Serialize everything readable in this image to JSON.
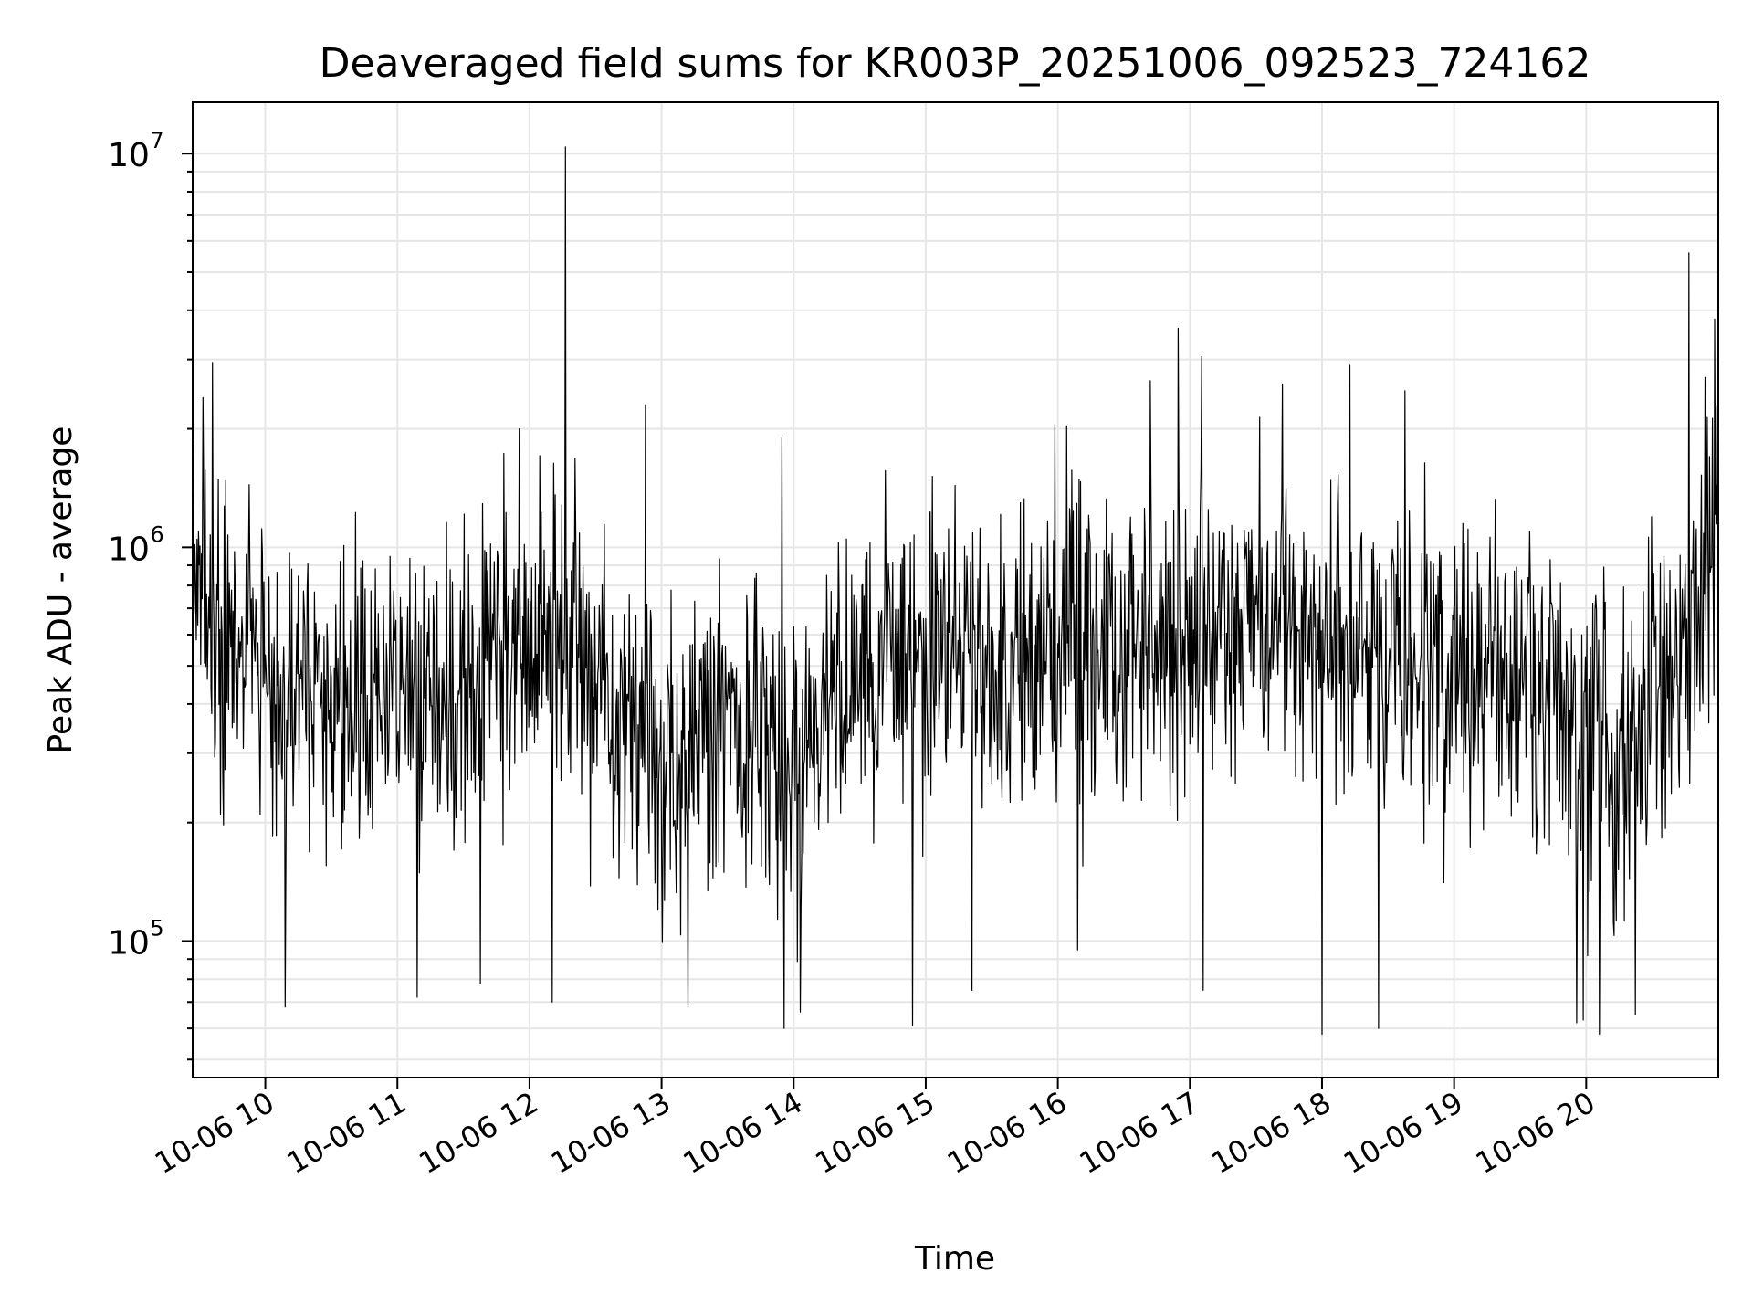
{
  "chart_data": {
    "type": "line",
    "title": "Deaveraged field sums for KR003P_20251006_092523_724162",
    "xlabel": "Time",
    "ylabel": "Peak ADU - average",
    "yscale": "log",
    "ylim": [
      45000,
      13500000
    ],
    "xlim_hours": [
      9.45,
      21.0
    ],
    "grid": true,
    "line_color": "#000000",
    "x_ticks": [
      {
        "hour": 10,
        "label": "10-06 10"
      },
      {
        "hour": 11,
        "label": "10-06 11"
      },
      {
        "hour": 12,
        "label": "10-06 12"
      },
      {
        "hour": 13,
        "label": "10-06 13"
      },
      {
        "hour": 14,
        "label": "10-06 14"
      },
      {
        "hour": 15,
        "label": "10-06 15"
      },
      {
        "hour": 16,
        "label": "10-06 16"
      },
      {
        "hour": 17,
        "label": "10-06 17"
      },
      {
        "hour": 18,
        "label": "10-06 18"
      },
      {
        "hour": 19,
        "label": "10-06 19"
      },
      {
        "hour": 20,
        "label": "10-06 20"
      }
    ],
    "y_ticks": [
      {
        "value": 100000,
        "base": "10",
        "exp": "5"
      },
      {
        "value": 1000000,
        "base": "10",
        "exp": "6"
      },
      {
        "value": 10000000,
        "base": "10",
        "exp": "7"
      }
    ],
    "series": [
      {
        "name": "field sums",
        "samples_per_hour": 180,
        "baseline_profile": {
          "hours": [
            9.45,
            9.6,
            10.0,
            10.5,
            11.0,
            11.5,
            12.0,
            12.4,
            12.7,
            13.0,
            13.5,
            14.0,
            14.5,
            15.0,
            15.5,
            16.0,
            16.5,
            17.0,
            17.5,
            18.0,
            18.5,
            19.0,
            19.5,
            20.0,
            20.3,
            20.7,
            21.0
          ],
          "values": [
            800000,
            650000,
            480000,
            430000,
            420000,
            460000,
            560000,
            560000,
            320000,
            290000,
            360000,
            300000,
            480000,
            560000,
            470000,
            600000,
            540000,
            620000,
            650000,
            600000,
            520000,
            500000,
            450000,
            300000,
            310000,
            500000,
            1000000
          ]
        },
        "spikes": [
          {
            "hour": 12.27,
            "value": 10400000
          },
          {
            "hour": 20.78,
            "value": 5600000
          },
          {
            "hour": 16.91,
            "value": 3600000
          },
          {
            "hour": 20.97,
            "value": 3800000
          },
          {
            "hour": 17.09,
            "value": 3050000
          },
          {
            "hour": 9.6,
            "value": 2950000
          },
          {
            "hour": 12.88,
            "value": 2300000
          },
          {
            "hour": 18.21,
            "value": 2900000
          },
          {
            "hour": 18.63,
            "value": 2500000
          },
          {
            "hour": 9.53,
            "value": 2400000
          },
          {
            "hour": 11.92,
            "value": 2000000
          },
          {
            "hour": 13.91,
            "value": 1900000
          },
          {
            "hour": 15.98,
            "value": 2050000
          },
          {
            "hour": 17.7,
            "value": 2600000
          },
          {
            "hour": 16.7,
            "value": 2650000
          },
          {
            "hour": 20.9,
            "value": 2700000
          },
          {
            "hour": 10.15,
            "value": 68000
          },
          {
            "hour": 12.17,
            "value": 70000
          },
          {
            "hour": 13.2,
            "value": 68000
          },
          {
            "hour": 13.93,
            "value": 60000
          },
          {
            "hour": 14.05,
            "value": 66000
          },
          {
            "hour": 14.9,
            "value": 61000
          },
          {
            "hour": 18.0,
            "value": 58000
          },
          {
            "hour": 18.43,
            "value": 60000
          },
          {
            "hour": 19.93,
            "value": 62000
          },
          {
            "hour": 20.1,
            "value": 58000
          },
          {
            "hour": 19.98,
            "value": 63000
          },
          {
            "hour": 20.37,
            "value": 65000
          },
          {
            "hour": 11.15,
            "value": 72000
          },
          {
            "hour": 11.63,
            "value": 78000
          },
          {
            "hour": 15.35,
            "value": 75000
          },
          {
            "hour": 16.15,
            "value": 95000
          },
          {
            "hour": 17.1,
            "value": 75000
          }
        ]
      }
    ]
  }
}
